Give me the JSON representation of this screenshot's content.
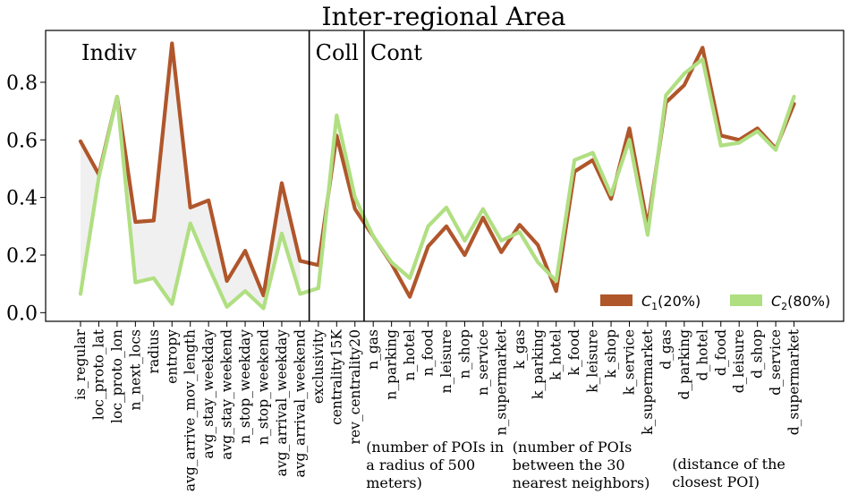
{
  "chart_data": {
    "type": "line",
    "title": "Inter-regional Area",
    "ylim": [
      -0.03,
      0.98
    ],
    "yticks": [
      "0.0",
      "0.2",
      "0.4",
      "0.6",
      "0.8"
    ],
    "ytick_values": [
      0.0,
      0.2,
      0.4,
      0.6,
      0.8
    ],
    "categories": [
      "is_regular",
      "loc_proto_lat",
      "loc_proto_lon",
      "n_next_locs",
      "radius",
      "entropy",
      "avg_arrive_mov_length",
      "avg_stay_weekday",
      "avg_stay_weekend",
      "n_stop_weekday",
      "n_stop_weekend",
      "avg_arrival_weekday",
      "avg_arrival_weekend",
      "exclusivity",
      "centrality15K",
      "rev_centrality20",
      "n_gas",
      "n_parking",
      "n_hotel",
      "n_food",
      "n_leisure",
      "n_shop",
      "n_service",
      "n_supermarket",
      "k_gas",
      "k_parking",
      "k_hotel",
      "k_food",
      "k_leisure",
      "k_shop",
      "k_service",
      "k_supermarket",
      "d_gas",
      "d_parking",
      "d_hotel",
      "d_food",
      "d_leisure",
      "d_shop",
      "d_service",
      "d_supermarket"
    ],
    "series": [
      {
        "name": "C_1(20%)",
        "color": "#b0562b",
        "values": [
          0.595,
          0.48,
          0.75,
          0.315,
          0.32,
          0.935,
          0.365,
          0.39,
          0.11,
          0.215,
          0.06,
          0.45,
          0.18,
          0.165,
          0.615,
          0.36,
          0.265,
          0.17,
          0.055,
          0.23,
          0.3,
          0.2,
          0.33,
          0.21,
          0.305,
          0.235,
          0.075,
          0.49,
          0.53,
          0.395,
          0.64,
          0.3,
          0.73,
          0.79,
          0.92,
          0.615,
          0.6,
          0.64,
          0.57,
          0.725
        ]
      },
      {
        "name": "C_2(80%)",
        "color": "#b0df82",
        "values": [
          0.065,
          0.47,
          0.75,
          0.105,
          0.12,
          0.03,
          0.31,
          0.16,
          0.02,
          0.075,
          0.015,
          0.275,
          0.065,
          0.085,
          0.685,
          0.4,
          0.265,
          0.175,
          0.12,
          0.3,
          0.365,
          0.25,
          0.36,
          0.25,
          0.28,
          0.175,
          0.11,
          0.53,
          0.555,
          0.41,
          0.6,
          0.27,
          0.755,
          0.83,
          0.88,
          0.58,
          0.59,
          0.63,
          0.565,
          0.75
        ]
      }
    ],
    "legend_labels": [
      {
        "main": "C",
        "sub": "1",
        "rest": "(20%)"
      },
      {
        "main": "C",
        "sub": "2",
        "rest": "(80%)"
      }
    ],
    "legend_position": "lower-right",
    "shaded_between_series": [
      0,
      12
    ],
    "grid": false,
    "sections": [
      {
        "label": "Indiv",
        "start_index": 0
      },
      {
        "label": "Coll",
        "start_index": 13
      },
      {
        "label": "Cont",
        "start_index": 16
      }
    ],
    "group_notes": [
      {
        "lines": [
          "(number of POIs in",
          "a radius of 500",
          "meters)"
        ],
        "start_index": 16
      },
      {
        "lines": [
          "(number of POIs",
          "between the 30",
          "nearest neighbors)"
        ],
        "start_index": 24
      },
      {
        "lines": [
          "(distance of the",
          "closest POI)"
        ],
        "start_index": 32
      }
    ]
  }
}
